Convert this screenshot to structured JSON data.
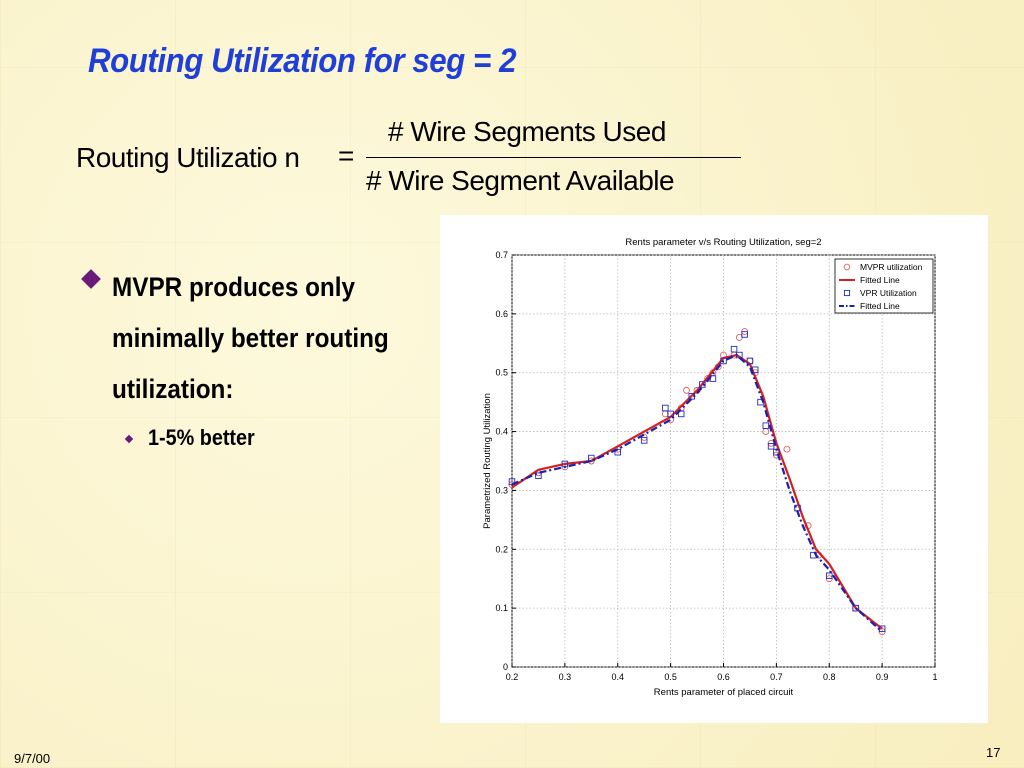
{
  "slide": {
    "title": "Routing Utilization for seg = 2",
    "formula": {
      "lhs": "Routing Utilizatio n",
      "equals": "=",
      "numerator": "# Wire Segments Used",
      "denominator": "# Wire Segment Available"
    },
    "bullets": [
      {
        "text": "MVPR produces only minimally better routing utilization:",
        "color": "#6a1b7a"
      }
    ],
    "sub_bullets": [
      {
        "text": "1-5% better"
      }
    ],
    "footer": {
      "date": "9/7/00",
      "page": "17"
    }
  },
  "chart_data": {
    "type": "line",
    "title": "Rents parameter v/s Routing Utilization, seg=2",
    "xlabel": "Rents parameter of placed circuit",
    "ylabel": "Parametrized Routing Utilization",
    "xlim": [
      0.2,
      1.0
    ],
    "ylim": [
      0,
      0.7
    ],
    "xticks": [
      "0.2",
      "0.3",
      "0.4",
      "0.5",
      "0.6",
      "0.7",
      "0.8",
      "0.9",
      "1"
    ],
    "yticks": [
      "0",
      "0.1",
      "0.2",
      "0.3",
      "0.4",
      "0.5",
      "0.6",
      "0.7"
    ],
    "grid": true,
    "legend_position": "top-right",
    "series": [
      {
        "name": "MVPR utilization",
        "kind": "markers",
        "marker": "circle",
        "color": "#e06060",
        "points": [
          [
            0.2,
            0.31
          ],
          [
            0.25,
            0.33
          ],
          [
            0.3,
            0.34
          ],
          [
            0.35,
            0.35
          ],
          [
            0.4,
            0.37
          ],
          [
            0.45,
            0.39
          ],
          [
            0.49,
            0.43
          ],
          [
            0.5,
            0.42
          ],
          [
            0.52,
            0.44
          ],
          [
            0.53,
            0.47
          ],
          [
            0.55,
            0.47
          ],
          [
            0.57,
            0.49
          ],
          [
            0.58,
            0.5
          ],
          [
            0.59,
            0.51
          ],
          [
            0.6,
            0.53
          ],
          [
            0.62,
            0.53
          ],
          [
            0.63,
            0.56
          ],
          [
            0.64,
            0.57
          ],
          [
            0.65,
            0.52
          ],
          [
            0.66,
            0.5
          ],
          [
            0.68,
            0.4
          ],
          [
            0.69,
            0.38
          ],
          [
            0.7,
            0.36
          ],
          [
            0.72,
            0.37
          ],
          [
            0.74,
            0.27
          ],
          [
            0.76,
            0.24
          ],
          [
            0.78,
            0.19
          ],
          [
            0.8,
            0.15
          ],
          [
            0.85,
            0.1
          ],
          [
            0.9,
            0.06
          ]
        ]
      },
      {
        "name": "Fitted Line",
        "kind": "line",
        "dash": "solid",
        "color": "#d42020",
        "points": [
          [
            0.2,
            0.305
          ],
          [
            0.25,
            0.335
          ],
          [
            0.3,
            0.345
          ],
          [
            0.35,
            0.35
          ],
          [
            0.4,
            0.375
          ],
          [
            0.45,
            0.4
          ],
          [
            0.5,
            0.425
          ],
          [
            0.55,
            0.47
          ],
          [
            0.6,
            0.525
          ],
          [
            0.625,
            0.53
          ],
          [
            0.65,
            0.515
          ],
          [
            0.675,
            0.46
          ],
          [
            0.7,
            0.38
          ],
          [
            0.725,
            0.32
          ],
          [
            0.75,
            0.255
          ],
          [
            0.775,
            0.2
          ],
          [
            0.8,
            0.175
          ],
          [
            0.85,
            0.1
          ],
          [
            0.9,
            0.065
          ]
        ]
      },
      {
        "name": "VPR Utilization",
        "kind": "markers",
        "marker": "square",
        "color": "#2030c0",
        "points": [
          [
            0.2,
            0.315
          ],
          [
            0.25,
            0.325
          ],
          [
            0.3,
            0.345
          ],
          [
            0.35,
            0.355
          ],
          [
            0.4,
            0.365
          ],
          [
            0.45,
            0.385
          ],
          [
            0.49,
            0.44
          ],
          [
            0.5,
            0.43
          ],
          [
            0.52,
            0.43
          ],
          [
            0.54,
            0.46
          ],
          [
            0.56,
            0.48
          ],
          [
            0.58,
            0.49
          ],
          [
            0.6,
            0.52
          ],
          [
            0.62,
            0.54
          ],
          [
            0.63,
            0.53
          ],
          [
            0.64,
            0.565
          ],
          [
            0.65,
            0.52
          ],
          [
            0.66,
            0.505
          ],
          [
            0.67,
            0.45
          ],
          [
            0.68,
            0.41
          ],
          [
            0.69,
            0.375
          ],
          [
            0.7,
            0.365
          ],
          [
            0.74,
            0.27
          ],
          [
            0.77,
            0.19
          ],
          [
            0.8,
            0.155
          ],
          [
            0.85,
            0.1
          ],
          [
            0.9,
            0.065
          ]
        ]
      },
      {
        "name": "Fitted Line",
        "kind": "line",
        "dash": "dashdot",
        "color": "#1a20b0",
        "points": [
          [
            0.2,
            0.31
          ],
          [
            0.25,
            0.33
          ],
          [
            0.3,
            0.34
          ],
          [
            0.35,
            0.35
          ],
          [
            0.4,
            0.37
          ],
          [
            0.45,
            0.395
          ],
          [
            0.5,
            0.42
          ],
          [
            0.55,
            0.465
          ],
          [
            0.6,
            0.52
          ],
          [
            0.625,
            0.53
          ],
          [
            0.65,
            0.51
          ],
          [
            0.675,
            0.45
          ],
          [
            0.7,
            0.37
          ],
          [
            0.725,
            0.3
          ],
          [
            0.75,
            0.24
          ],
          [
            0.775,
            0.19
          ],
          [
            0.8,
            0.165
          ],
          [
            0.85,
            0.1
          ],
          [
            0.9,
            0.06
          ]
        ]
      }
    ]
  }
}
